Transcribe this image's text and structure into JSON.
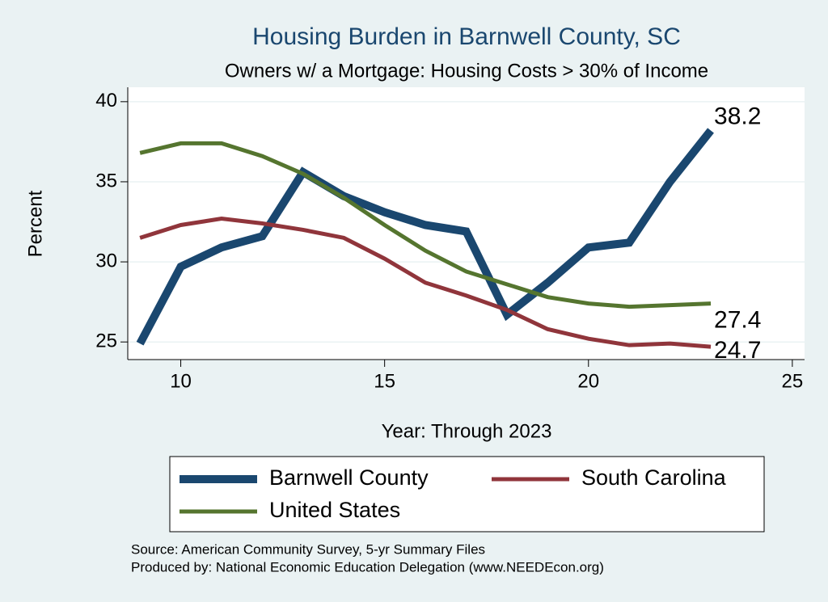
{
  "chart_data": {
    "type": "line",
    "title": "Housing Burden in Barnwell County, SC",
    "subtitle": "Owners w/ a Mortgage: Housing Costs > 30% of Income",
    "x_label": "Year: Through 2023",
    "y_label": "Percent",
    "x": [
      9,
      10,
      11,
      12,
      13,
      14,
      15,
      16,
      17,
      18,
      19,
      20,
      21,
      22,
      23
    ],
    "series": [
      {
        "name": "Barnwell County",
        "color": "#1a476f",
        "values": [
          24.9,
          29.7,
          30.9,
          31.6,
          35.6,
          34.1,
          33.1,
          32.3,
          31.9,
          26.7,
          28.7,
          30.9,
          31.2,
          35.0,
          38.2
        ]
      },
      {
        "name": "South Carolina",
        "color": "#90353b",
        "values": [
          31.5,
          32.3,
          32.7,
          32.4,
          32.0,
          31.5,
          30.2,
          28.7,
          27.9,
          27.0,
          25.8,
          25.2,
          24.8,
          24.9,
          24.7
        ]
      },
      {
        "name": "United States",
        "color": "#55752f",
        "values": [
          36.8,
          37.4,
          37.4,
          36.6,
          35.5,
          34.0,
          32.3,
          30.7,
          29.4,
          28.6,
          27.8,
          27.4,
          27.2,
          27.3,
          27.4
        ]
      }
    ],
    "xlim": [
      8.7,
      25.3
    ],
    "xticks": [
      10,
      15,
      20,
      25
    ],
    "ylim": [
      23.9,
      40.9
    ],
    "yticks": [
      25,
      30,
      35,
      40
    ],
    "grid": true,
    "source": "Source: American Community Survey, 5-yr Summary Files",
    "credit": "Produced by: National Economic Education Delegation (www.NEEDEcon.org)"
  }
}
